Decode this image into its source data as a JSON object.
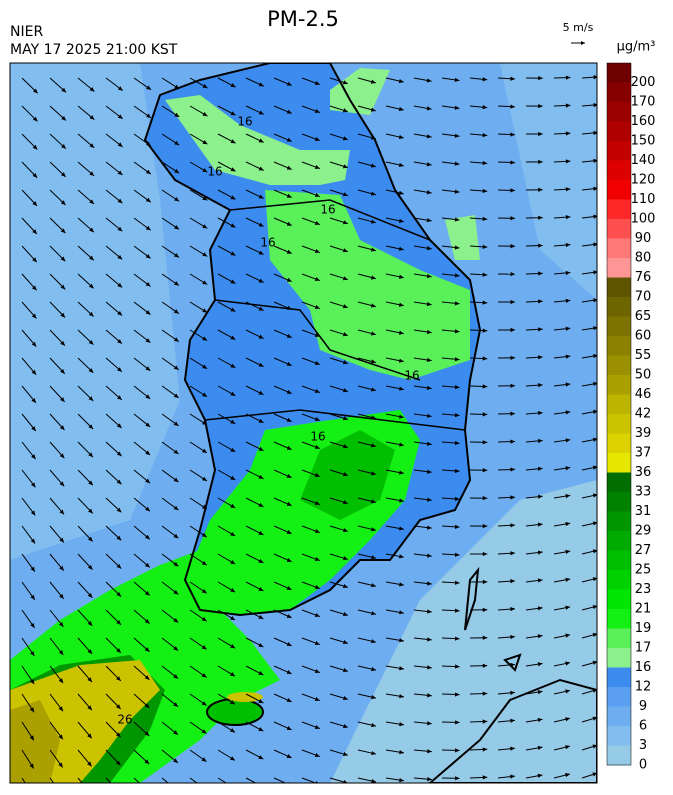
{
  "header": {
    "title": "PM-2.5",
    "agency": "NIER",
    "timestamp": "MAY 17 2025 21:00 KST"
  },
  "wind_reference": "5 m/s",
  "colorbar": {
    "unit": "μg/m³",
    "labels": [
      "200",
      "170",
      "160",
      "150",
      "140",
      "120",
      "110",
      "100",
      "90",
      "80",
      "76",
      "70",
      "65",
      "60",
      "55",
      "50",
      "46",
      "42",
      "39",
      "37",
      "36",
      "33",
      "31",
      "29",
      "27",
      "25",
      "23",
      "21",
      "19",
      "17",
      "16",
      "12",
      "9",
      "6",
      "3",
      "0"
    ],
    "colors": [
      "#6e0000",
      "#870000",
      "#9b0000",
      "#af0000",
      "#c30000",
      "#dc0000",
      "#f00000",
      "#ff2828",
      "#ff5050",
      "#ff7878",
      "#ff9696",
      "#5f5500",
      "#6e6400",
      "#7d7300",
      "#8c8200",
      "#9b9100",
      "#aaa000",
      "#bdb400",
      "#ccc300",
      "#dcd200",
      "#e6e600",
      "#006e00",
      "#008200",
      "#009600",
      "#00aa00",
      "#00be00",
      "#00d200",
      "#00e600",
      "#14f014",
      "#5af05a",
      "#8cf08c",
      "#3c8cf0",
      "#5a9ff0",
      "#6eaef0",
      "#82bdf0",
      "#96cbe8"
    ]
  },
  "map": {
    "contour_labels": [
      "16",
      "16",
      "16",
      "16",
      "16",
      "16",
      "26"
    ]
  }
}
